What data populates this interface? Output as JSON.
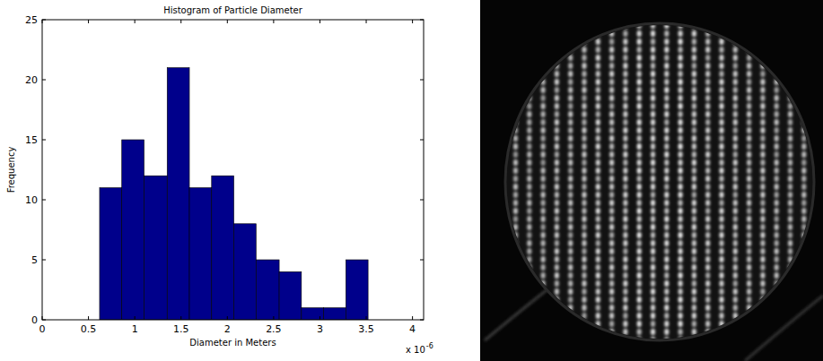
{
  "chart_data": {
    "type": "histogram",
    "title": "Histogram of Particle Diameter",
    "x_label": "Diameter in Meters",
    "y_label": "Frequency",
    "annotations": [
      {
        "text": "x 10",
        "superscript": "-6"
      }
    ],
    "bins": [
      0.62,
      0.86,
      1.1,
      1.35,
      1.59,
      1.83,
      2.07,
      2.31,
      2.56,
      2.8,
      3.04,
      3.28,
      3.52
    ],
    "values": [
      11,
      15,
      12,
      21,
      11,
      12,
      8,
      5,
      4,
      1,
      1,
      5
    ],
    "color": "#00008b",
    "xlim": [
      0,
      4.12
    ],
    "xticks": [
      0,
      0.5,
      1,
      1.5,
      2,
      2.5,
      3,
      3.5,
      4
    ],
    "ylim": [
      0,
      25
    ],
    "yticks": [
      0,
      5,
      10,
      15,
      20,
      25
    ],
    "grid": false
  }
}
